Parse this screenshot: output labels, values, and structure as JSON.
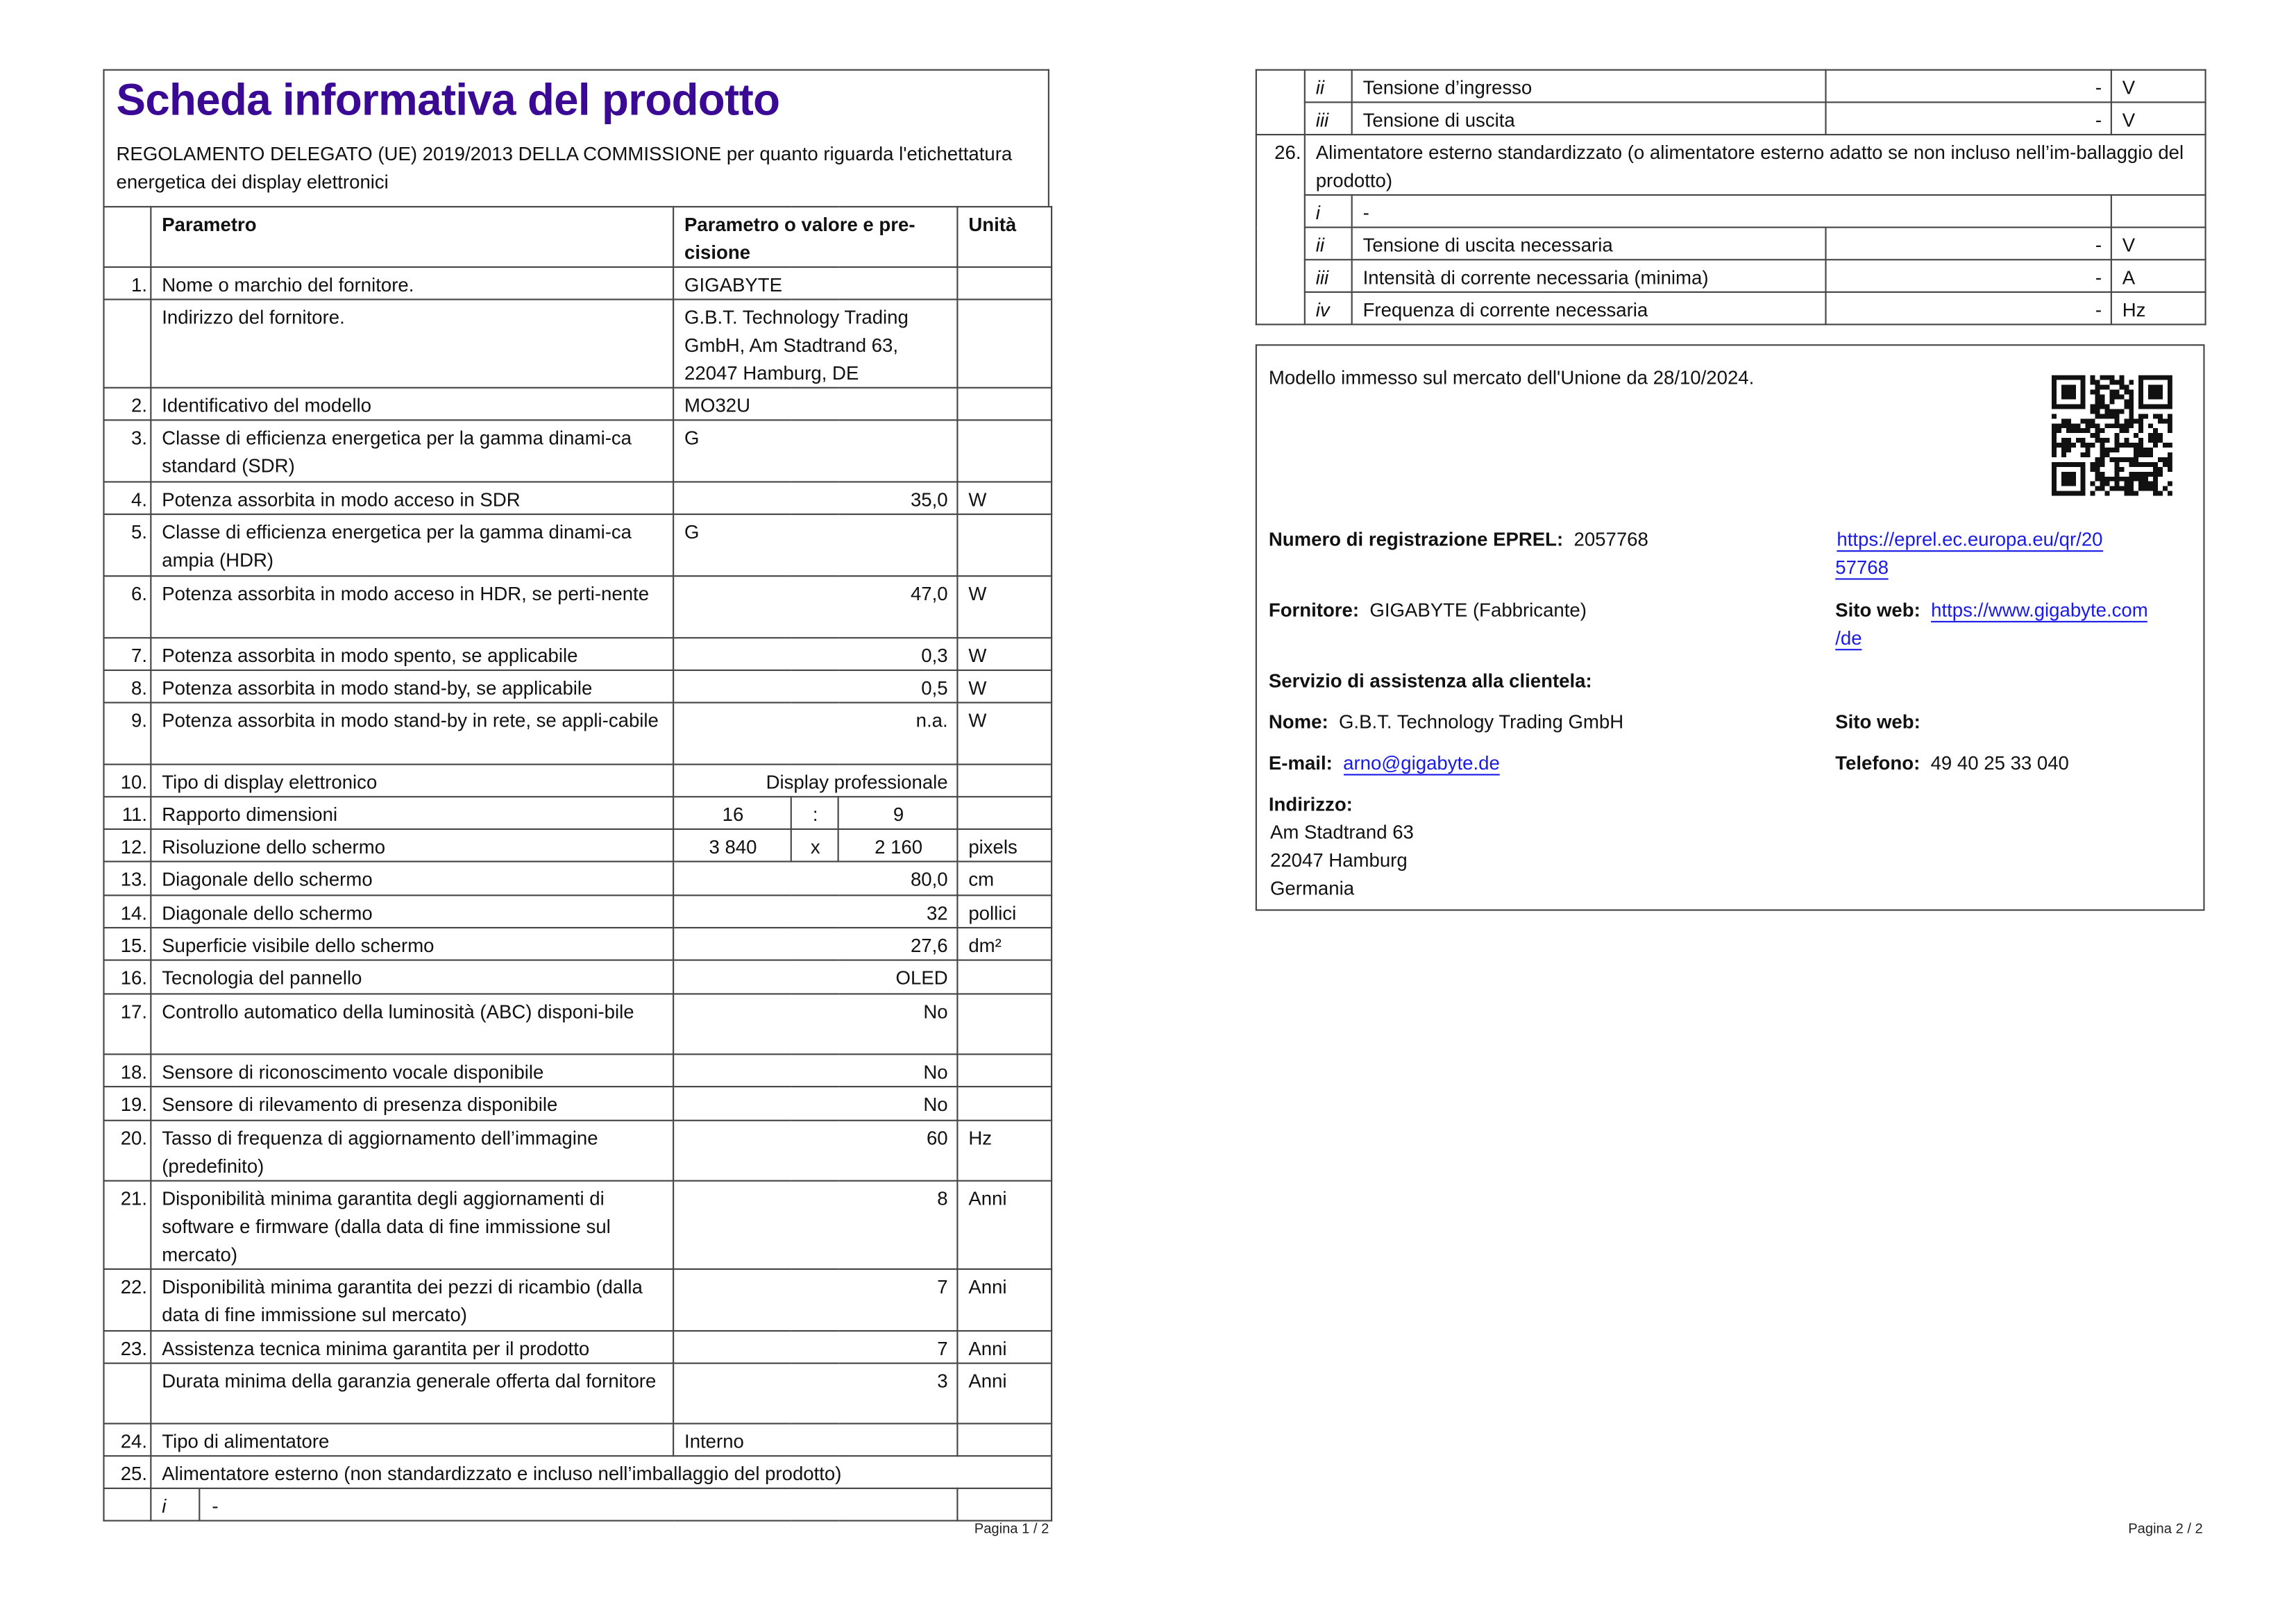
{
  "page1": {
    "title": "Scheda informativa del prodotto",
    "subtitle": "REGOLAMENTO DELEGATO (UE) 2019/2013 DELLA COMMISSIONE per quanto riguarda l'etichettatura energetica dei display elettronici",
    "headers": {
      "param": "Parametro",
      "value": "Parametro o valore e pre-cisione",
      "unit": "Unità"
    },
    "rows": [
      {
        "n": "1.",
        "label": "Nome o marchio del fornitore.",
        "value": "GIGABYTE",
        "unit": "",
        "align": "left"
      },
      {
        "n": "",
        "label": "Indirizzo del fornitore.",
        "value": "G.B.T. Technology Trading GmbH, Am Stadtrand 63, 22047 Hamburg, DE",
        "unit": "",
        "align": "left"
      },
      {
        "n": "2.",
        "label": "Identificativo del modello",
        "value": "MO32U",
        "unit": "",
        "align": "left"
      },
      {
        "n": "3.",
        "label": "Classe di efficienza energetica per la gamma dinami-ca standard (SDR)",
        "value": "G",
        "unit": "",
        "align": "left"
      },
      {
        "n": "4.",
        "label": "Potenza assorbita in modo acceso in SDR",
        "value": "35,0",
        "unit": "W",
        "align": "right"
      },
      {
        "n": "5.",
        "label": "Classe di efficienza energetica per la gamma dinami-ca ampia (HDR)",
        "value": "G",
        "unit": "",
        "align": "left"
      },
      {
        "n": "6.",
        "label": "Potenza assorbita in modo acceso in HDR, se perti-nente",
        "value": "47,0",
        "unit": "W",
        "align": "right"
      },
      {
        "n": "7.",
        "label": "Potenza assorbita in modo spento, se applicabile",
        "value": "0,3",
        "unit": "W",
        "align": "right"
      },
      {
        "n": "8.",
        "label": "Potenza assorbita in modo stand-by, se applicabile",
        "value": "0,5",
        "unit": "W",
        "align": "right"
      },
      {
        "n": "9.",
        "label": "Potenza assorbita in modo stand-by in rete, se appli-cabile",
        "value": "n.a.",
        "unit": "W",
        "align": "right"
      },
      {
        "n": "10.",
        "label": "Tipo di display elettronico",
        "value": "Display professionale",
        "unit": "",
        "align": "right"
      },
      {
        "n": "11.",
        "label": "Rapporto dimensioni",
        "parts": [
          "16",
          ":",
          "9"
        ],
        "unit": ""
      },
      {
        "n": "12.",
        "label": "Risoluzione dello schermo",
        "parts": [
          "3 840",
          "x",
          "2 160"
        ],
        "unit": "pixels"
      },
      {
        "n": "13.",
        "label": "Diagonale dello schermo",
        "value": "80,0",
        "unit": "cm",
        "align": "right"
      },
      {
        "n": "14.",
        "label": "Diagonale dello schermo",
        "value": "32",
        "unit": "pollici",
        "align": "right"
      },
      {
        "n": "15.",
        "label": "Superficie visibile dello schermo",
        "value": "27,6",
        "unit": "dm²",
        "align": "right"
      },
      {
        "n": "16.",
        "label": "Tecnologia del pannello",
        "value": "OLED",
        "unit": "",
        "align": "right"
      },
      {
        "n": "17.",
        "label": "Controllo automatico della luminosità (ABC) disponi-bile",
        "value": "No",
        "unit": "",
        "align": "right"
      },
      {
        "n": "18.",
        "label": "Sensore di riconoscimento vocale disponibile",
        "value": "No",
        "unit": "",
        "align": "right"
      },
      {
        "n": "19.",
        "label": "Sensore di rilevamento di presenza disponibile",
        "value": "No",
        "unit": "",
        "align": "right"
      },
      {
        "n": "20.",
        "label": "Tasso di frequenza di aggiornamento dell’immagine (predefinito)",
        "value": "60",
        "unit": "Hz",
        "align": "right"
      },
      {
        "n": "21.",
        "label": "Disponibilità minima garantita degli aggiornamenti di software e firmware (dalla data di fine immissione sul mercato)",
        "value": "8",
        "unit": "Anni",
        "align": "right"
      },
      {
        "n": "22.",
        "label": "Disponibilità minima garantita dei pezzi di ricambio (dalla data di fine immissione sul mercato)",
        "value": "7",
        "unit": "Anni",
        "align": "right"
      },
      {
        "n": "23.",
        "label": "Assistenza tecnica minima garantita per il prodotto",
        "value": "7",
        "unit": "Anni",
        "align": "right"
      },
      {
        "n": "",
        "label": "Durata minima della garanzia generale offerta dal fornitore",
        "value": "3",
        "unit": "Anni",
        "align": "right"
      },
      {
        "n": "24.",
        "label": "Tipo di alimentatore",
        "value": "Interno",
        "unit": "",
        "align": "left"
      }
    ],
    "row25": {
      "n": "25.",
      "label": "Alimentatore esterno (non standardizzato e incluso nell’imballaggio del prodotto)",
      "sub_i": {
        "roman": "i",
        "value": "-"
      }
    },
    "page_label": "Pagina 1 / 2"
  },
  "page2": {
    "row25_cont": [
      {
        "roman": "ii",
        "label": "Tensione d’ingresso",
        "value": "-",
        "unit": "V"
      },
      {
        "roman": "iii",
        "label": "Tensione di uscita",
        "value": "-",
        "unit": "V"
      }
    ],
    "row26": {
      "n": "26.",
      "label": "Alimentatore esterno standardizzato (o alimentatore esterno adatto se non incluso nell’im-ballaggio del prodotto)",
      "sub_i": {
        "roman": "i",
        "value": "-"
      },
      "subs": [
        {
          "roman": "ii",
          "label": "Tensione di uscita necessaria",
          "value": "-",
          "unit": "V"
        },
        {
          "roman": "iii",
          "label": "Intensità di corrente necessaria (minima)",
          "value": "-",
          "unit": "A"
        },
        {
          "roman": "iv",
          "label": "Frequenza di corrente necessaria",
          "value": "-",
          "unit": "Hz"
        }
      ]
    },
    "info": {
      "market_text": "Modello immesso sul mercato dell'Unione da 28/10/2024.",
      "eprel_label": "Numero di registrazione EPREL:",
      "eprel_number": "2057768",
      "eprel_link_1": "https://eprel.ec.europa.eu/qr/20",
      "eprel_link_2": "57768",
      "supplier_label": "Fornitore:",
      "supplier_value": "GIGABYTE (Fabbricante)",
      "website_label": "Sito web:",
      "website_link_1": "https://www.gigabyte.com",
      "website_link_2": "/de",
      "service_heading": "Servizio di assistenza alla clientela:",
      "name_label": "Nome:",
      "name_value": "G.B.T. Technology Trading GmbH",
      "service_website_label": "Sito web:",
      "email_label": "E-mail:",
      "email_value": "arno@gigabyte.de",
      "phone_label": "Telefono:",
      "phone_value": "49 40 25 33 040",
      "address_label": "Indirizzo:",
      "address_lines": [
        "Am Stadtrand 63",
        "22047 Hamburg",
        "Germania"
      ],
      "qr_icon": "qr-code"
    },
    "page_label": "Pagina 2 / 2"
  },
  "colors": {
    "title": "#3a0a94",
    "link": "#1a1ae6",
    "border": "#444444"
  }
}
